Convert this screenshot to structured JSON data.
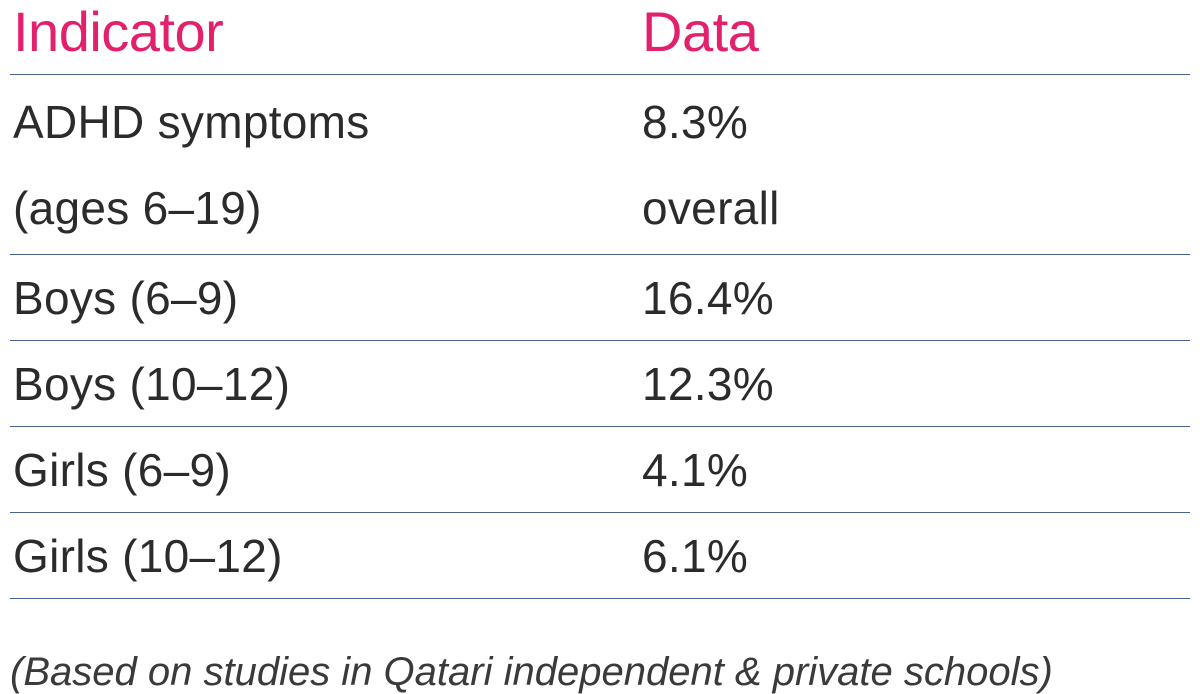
{
  "colors": {
    "accent": "#e3206b",
    "rule": "#4a6190",
    "text": "#2b2b2b"
  },
  "table": {
    "headers": [
      "Indicator",
      "Data"
    ],
    "rows": [
      {
        "indicator": [
          "ADHD symptoms",
          "(ages 6–19)"
        ],
        "data": [
          "8.3%",
          "overall"
        ]
      },
      {
        "indicator": [
          "Boys (6–9)"
        ],
        "data": [
          "16.4%"
        ]
      },
      {
        "indicator": [
          "Boys (10–12)"
        ],
        "data": [
          "12.3%"
        ]
      },
      {
        "indicator": [
          "Girls (6–9)"
        ],
        "data": [
          "4.1%"
        ]
      },
      {
        "indicator": [
          "Girls (10–12)"
        ],
        "data": [
          "6.1%"
        ]
      }
    ]
  },
  "footnote": "(Based on studies in Qatari independent & private schools)"
}
